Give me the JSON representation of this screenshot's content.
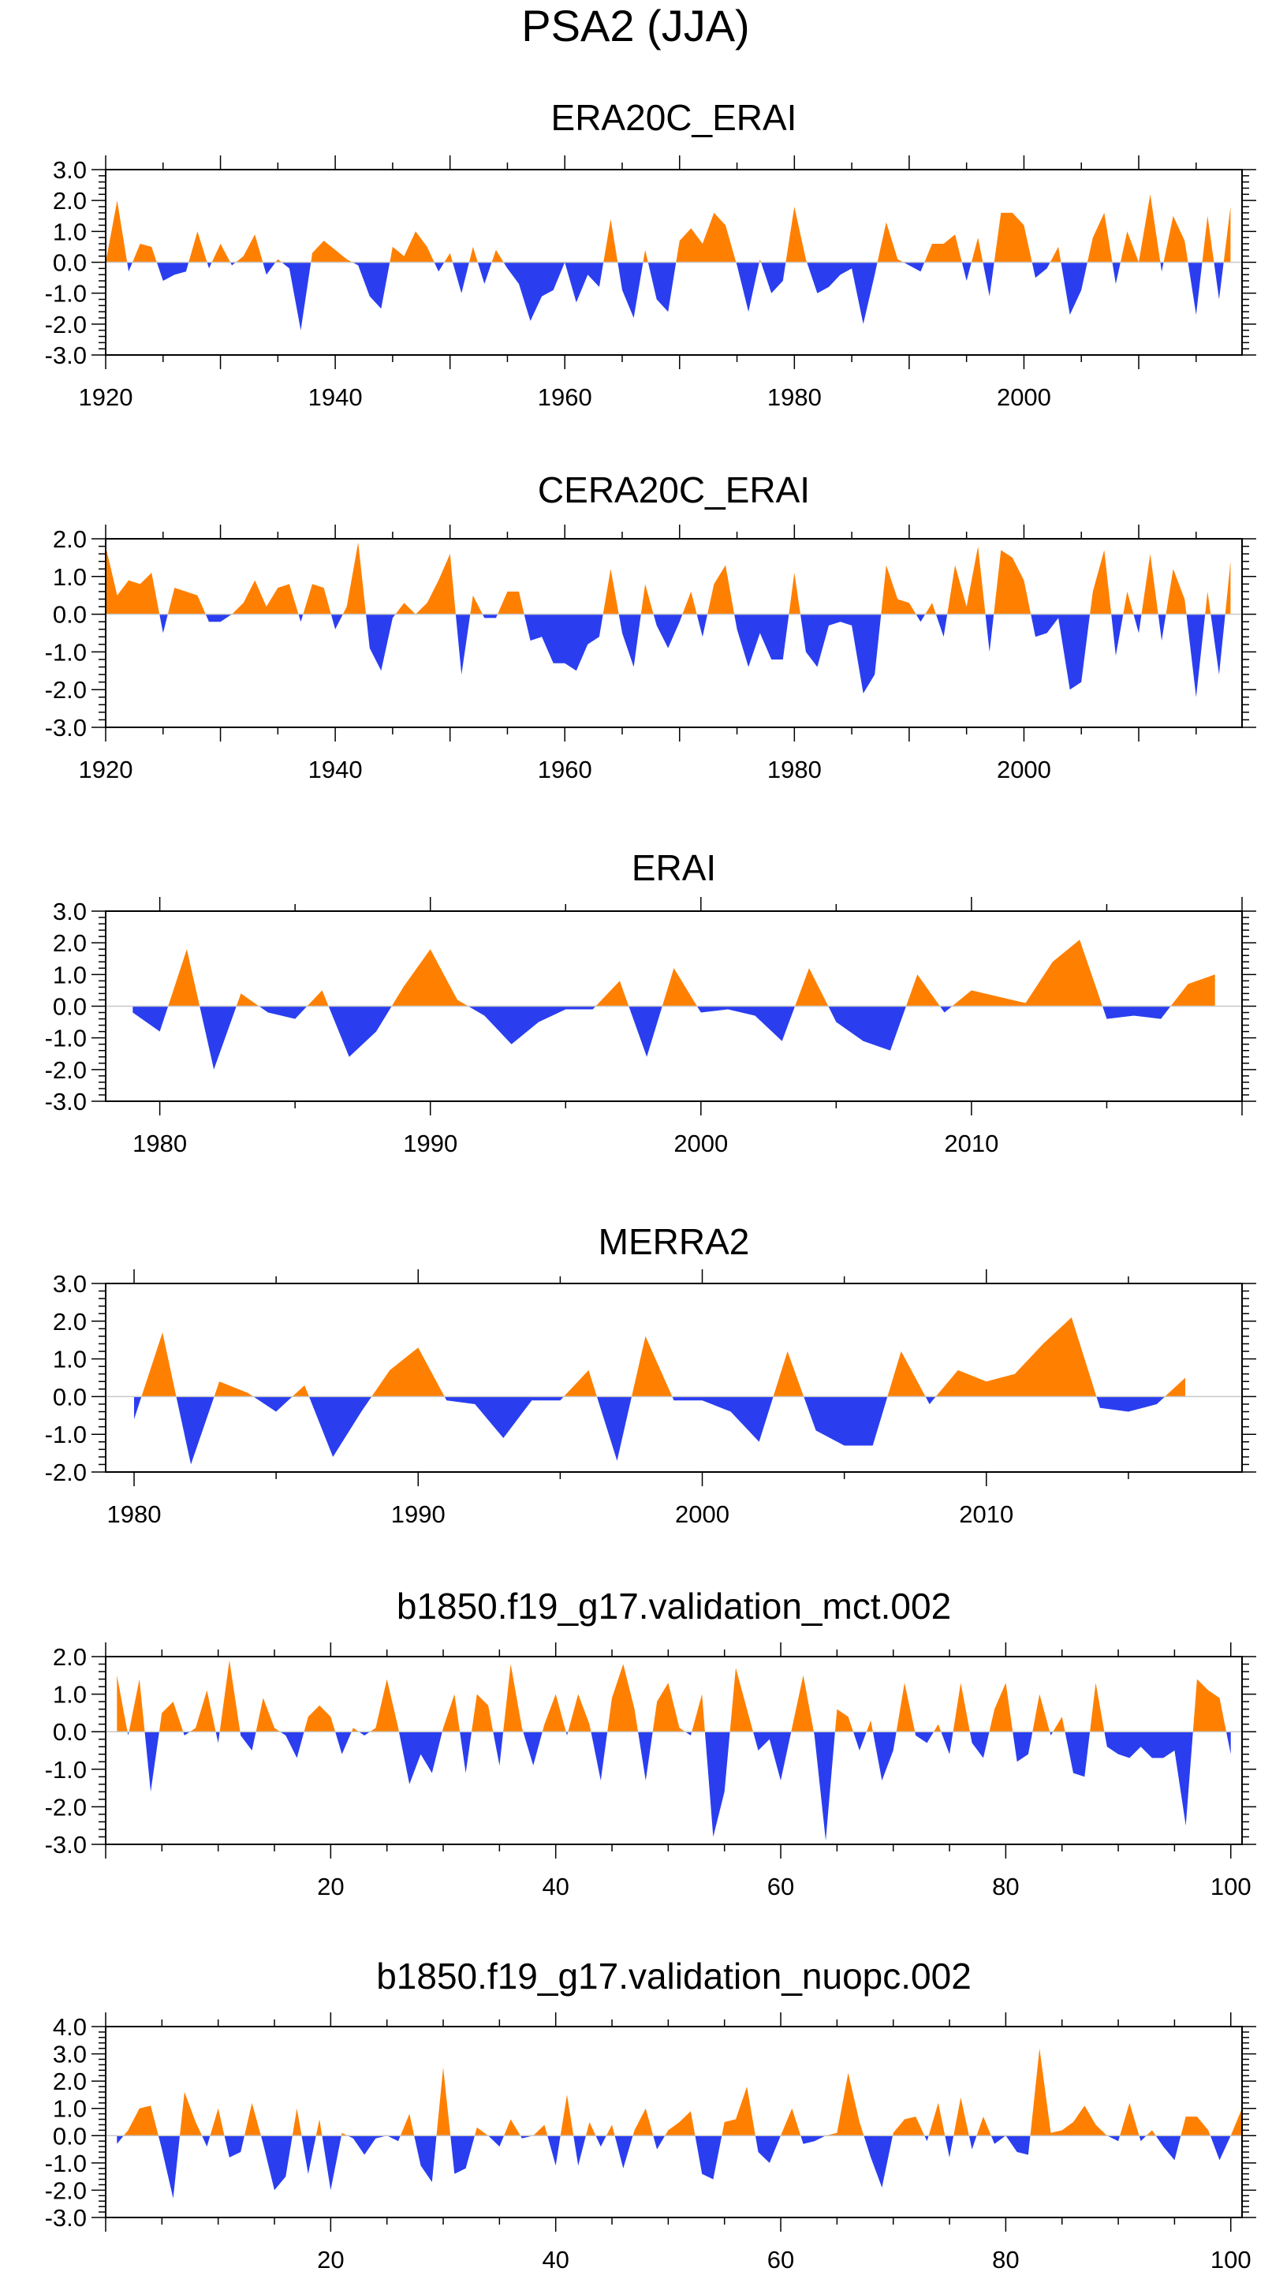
{
  "figure": {
    "title": "PSA2 (JJA)"
  },
  "colors": {
    "positive": "#ff8000",
    "negative": "#2a3ef0",
    "axis": "#000000"
  },
  "chart_data": [
    {
      "type": "area",
      "title": "ERA20C_ERAI",
      "xlim": [
        1920,
        2019
      ],
      "ylim": [
        -3.0,
        3.0
      ],
      "yticks": [
        "3.0",
        "2.0",
        "1.0",
        "0.0",
        "-1.0",
        "-2.0",
        "-3.0"
      ],
      "xticks": [
        "1920",
        "1940",
        "1960",
        "1980",
        "2000"
      ],
      "x_start": 1920,
      "values": [
        0.0,
        2.0,
        -0.3,
        0.6,
        0.5,
        -0.6,
        -0.4,
        -0.3,
        1.0,
        -0.2,
        0.6,
        -0.1,
        0.2,
        0.9,
        -0.4,
        0.1,
        -0.2,
        -2.2,
        0.3,
        0.7,
        0.4,
        0.1,
        -0.1,
        -1.1,
        -1.5,
        0.5,
        0.2,
        1.0,
        0.5,
        -0.3,
        0.3,
        -1.0,
        0.5,
        -0.7,
        0.4,
        -0.2,
        -0.7,
        -1.9,
        -1.1,
        -0.9,
        0.0,
        -1.3,
        -0.4,
        -0.8,
        1.4,
        -0.9,
        -1.8,
        0.4,
        -1.2,
        -1.6,
        0.7,
        1.1,
        0.6,
        1.6,
        1.2,
        -0.1,
        -1.6,
        0.1,
        -1.0,
        -0.6,
        1.8,
        0.1,
        -1.0,
        -0.8,
        -0.4,
        -0.2,
        -2.0,
        -0.4,
        1.3,
        0.1,
        -0.1,
        -0.3,
        0.6,
        0.6,
        0.9,
        -0.6,
        0.8,
        -1.1,
        1.6,
        1.6,
        1.2,
        -0.5,
        -0.2,
        0.5,
        -1.7,
        -0.9,
        0.8,
        1.6,
        -0.7,
        1.0,
        0.0,
        2.2,
        -0.3,
        1.5,
        0.7,
        -1.7,
        1.5,
        -1.2,
        1.8
      ]
    },
    {
      "type": "area",
      "title": "CERA20C_ERAI",
      "xlim": [
        1920,
        2019
      ],
      "ylim": [
        -3.0,
        2.0
      ],
      "yticks": [
        "2.0",
        "1.0",
        "0.0",
        "-1.0",
        "-2.0",
        "-3.0"
      ],
      "xticks": [
        "1920",
        "1940",
        "1960",
        "1980",
        "2000"
      ],
      "x_start": 1920,
      "values": [
        1.8,
        0.5,
        0.9,
        0.8,
        1.1,
        -0.5,
        0.7,
        0.6,
        0.5,
        -0.2,
        -0.2,
        0.0,
        0.3,
        0.9,
        0.2,
        0.7,
        0.8,
        -0.2,
        0.8,
        0.7,
        -0.4,
        0.2,
        1.9,
        -0.9,
        -1.5,
        -0.1,
        0.3,
        0.0,
        0.3,
        0.9,
        1.6,
        -1.6,
        0.5,
        -0.1,
        -0.1,
        0.6,
        0.6,
        -0.7,
        -0.6,
        -1.3,
        -1.3,
        -1.5,
        -0.8,
        -0.6,
        1.2,
        -0.5,
        -1.4,
        0.8,
        -0.3,
        -0.9,
        -0.2,
        0.6,
        -0.6,
        0.8,
        1.3,
        -0.4,
        -1.4,
        -0.5,
        -1.2,
        -1.2,
        1.1,
        -1.0,
        -1.4,
        -0.3,
        -0.2,
        -0.3,
        -2.1,
        -1.6,
        1.3,
        0.4,
        0.3,
        -0.2,
        0.3,
        -0.6,
        1.3,
        0.2,
        1.8,
        -1.0,
        1.7,
        1.5,
        0.9,
        -0.6,
        -0.5,
        -0.1,
        -2.0,
        -1.8,
        0.6,
        1.7,
        -1.1,
        0.6,
        -0.5,
        1.6,
        -0.7,
        1.2,
        0.4,
        -2.2,
        0.6,
        -1.6,
        1.4
      ]
    },
    {
      "type": "area",
      "title": "ERAI",
      "xlim": [
        1978,
        2020
      ],
      "ylim": [
        -3.0,
        3.0
      ],
      "yticks": [
        "3.0",
        "2.0",
        "1.0",
        "0.0",
        "-1.0",
        "-2.0",
        "-3.0"
      ],
      "xticks": [
        "1980",
        "1990",
        "2000",
        "2010"
      ],
      "x_start": 1979,
      "values": [
        -0.2,
        -0.8,
        1.8,
        -2.0,
        0.4,
        -0.2,
        -0.4,
        0.5,
        -1.6,
        -0.8,
        0.6,
        1.8,
        0.2,
        -0.3,
        -1.2,
        -0.5,
        -0.1,
        -0.1,
        0.8,
        -1.6,
        1.2,
        -0.2,
        -0.1,
        -0.3,
        -1.1,
        1.2,
        -0.5,
        -1.1,
        -1.4,
        1.0,
        -0.2,
        0.5,
        0.3,
        0.1,
        1.4,
        2.1,
        -0.4,
        -0.3,
        -0.4,
        0.7,
        1.0
      ]
    },
    {
      "type": "area",
      "title": "MERRA2",
      "xlim": [
        1979,
        2019
      ],
      "ylim": [
        -2.0,
        3.0
      ],
      "yticks": [
        "3.0",
        "2.0",
        "1.0",
        "0.0",
        "-1.0",
        "-2.0"
      ],
      "xticks": [
        "1980",
        "1990",
        "2000",
        "2010"
      ],
      "x_start": 1980,
      "values": [
        -0.6,
        1.7,
        -1.8,
        0.4,
        0.1,
        -0.4,
        0.3,
        -1.6,
        -0.4,
        0.7,
        1.3,
        -0.1,
        -0.2,
        -1.1,
        -0.1,
        -0.1,
        0.7,
        -1.7,
        1.6,
        -0.1,
        -0.1,
        -0.4,
        -1.2,
        1.2,
        -0.9,
        -1.3,
        -1.3,
        1.2,
        -0.2,
        0.7,
        0.4,
        0.6,
        1.4,
        2.1,
        -0.3,
        -0.4,
        -0.2,
        0.5
      ]
    },
    {
      "type": "area",
      "title": "b1850.f19_g17.validation_mct.002",
      "xlim": [
        0,
        101
      ],
      "ylim": [
        -3.0,
        2.0
      ],
      "yticks": [
        "2.0",
        "1.0",
        "0.0",
        "-1.0",
        "-2.0",
        "-3.0"
      ],
      "xticks": [
        "20",
        "40",
        "60",
        "80",
        "100"
      ],
      "x_start": 1,
      "values": [
        1.5,
        -0.1,
        1.4,
        -1.6,
        0.5,
        0.8,
        -0.1,
        0.1,
        1.1,
        -0.3,
        1.9,
        -0.1,
        -0.5,
        0.9,
        0.1,
        -0.1,
        -0.7,
        0.4,
        0.7,
        0.4,
        -0.6,
        0.1,
        -0.1,
        0.1,
        1.4,
        0.1,
        -1.4,
        -0.6,
        -1.1,
        0.1,
        1.0,
        -1.1,
        1.0,
        0.7,
        -0.9,
        1.8,
        0.1,
        -0.9,
        0.2,
        1.0,
        -0.1,
        1.0,
        0.2,
        -1.3,
        0.9,
        1.8,
        0.6,
        -1.3,
        0.8,
        1.3,
        0.1,
        -0.1,
        1.0,
        -2.8,
        -1.6,
        1.7,
        0.6,
        -0.5,
        -0.2,
        -1.3,
        0.1,
        1.5,
        -0.1,
        -2.9,
        0.6,
        0.4,
        -0.5,
        0.3,
        -1.3,
        -0.5,
        1.3,
        -0.1,
        -0.3,
        0.2,
        -0.6,
        1.3,
        -0.3,
        -0.7,
        0.6,
        1.3,
        -0.8,
        -0.6,
        1.0,
        -0.1,
        0.4,
        -1.1,
        -1.2,
        1.3,
        -0.4,
        -0.6,
        -0.7,
        -0.4,
        -0.7,
        -0.7,
        -0.5,
        -2.5,
        1.4,
        1.1,
        0.9,
        -0.6
      ]
    },
    {
      "type": "area",
      "title": "b1850.f19_g17.validation_nuopc.002",
      "xlim": [
        0,
        101
      ],
      "ylim": [
        -3.0,
        4.0
      ],
      "yticks": [
        "4.0",
        "3.0",
        "2.0",
        "1.0",
        "0.0",
        "-1.0",
        "-2.0",
        "-3.0"
      ],
      "xticks": [
        "20",
        "40",
        "60",
        "80",
        "100"
      ],
      "x_start": 1,
      "values": [
        -0.3,
        0.2,
        1.0,
        1.1,
        -0.5,
        -2.3,
        1.6,
        0.5,
        -0.4,
        1.0,
        -0.8,
        -0.6,
        1.2,
        -0.3,
        -2.0,
        -1.5,
        1.0,
        -1.4,
        0.6,
        -2.0,
        0.1,
        -0.1,
        -0.7,
        -0.1,
        0.0,
        -0.2,
        0.8,
        -1.1,
        -1.7,
        2.5,
        -1.4,
        -1.2,
        0.3,
        0.0,
        -0.4,
        0.6,
        -0.1,
        0.0,
        0.4,
        -1.1,
        1.5,
        -1.1,
        0.5,
        -0.4,
        0.4,
        -1.2,
        0.2,
        1.0,
        -0.5,
        0.2,
        0.5,
        0.9,
        -1.4,
        -1.6,
        0.5,
        0.6,
        1.8,
        -0.6,
        -1.0,
        0.0,
        1.0,
        -0.3,
        -0.2,
        0.0,
        0.1,
        2.3,
        0.5,
        -0.8,
        -1.9,
        0.1,
        0.6,
        0.7,
        -0.2,
        1.2,
        -0.8,
        1.4,
        -0.5,
        0.7,
        -0.3,
        0.0,
        -0.6,
        -0.7,
        3.2,
        0.1,
        0.2,
        0.5,
        1.1,
        0.4,
        0.0,
        -0.2,
        1.2,
        -0.2,
        0.2,
        -0.4,
        -0.9,
        0.7,
        0.7,
        0.2,
        -0.9,
        0.0,
        1.0
      ]
    }
  ]
}
